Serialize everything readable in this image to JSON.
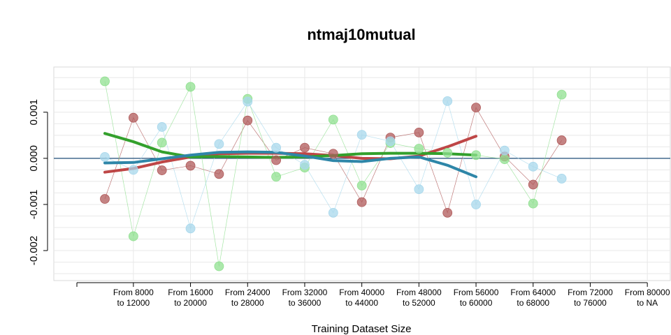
{
  "chart_data": {
    "type": "scatter",
    "title": "ntmaj10mutual",
    "xlabel": "Training Dataset Size",
    "ylabel": "",
    "x_tick_labels": [
      [
        "From 8000",
        "to 12000"
      ],
      [
        "From 16000",
        "to 20000"
      ],
      [
        "From 24000",
        "to 28000"
      ],
      [
        "From 32000",
        "to 36000"
      ],
      [
        "From 40000",
        "to 44000"
      ],
      [
        "From 48000",
        "to 52000"
      ],
      [
        "From 56000",
        "to 60000"
      ],
      [
        "From 64000",
        "to 68000"
      ],
      [
        "From 72000",
        "to 76000"
      ],
      [
        "From 80000",
        "to NA"
      ]
    ],
    "y_ticks": [
      0.001,
      0.0,
      -0.001,
      -0.002
    ],
    "y_tick_labels": [
      "0.001",
      "0.000",
      "-0.001",
      "-0.002"
    ],
    "xlim": [
      -0.5,
      20.5
    ],
    "ylim": [
      -0.00265,
      0.00198
    ],
    "grid": true,
    "reference_line_y": 0.0,
    "series": [
      {
        "color": "#B05A5A",
        "points": [
          [
            0,
            -0.00088
          ],
          [
            1,
            0.00088
          ],
          [
            2,
            -0.00026
          ],
          [
            3,
            -0.00016
          ],
          [
            4,
            -0.00034
          ],
          [
            5,
            0.00082
          ],
          [
            6,
            -4e-05
          ],
          [
            7,
            0.00023
          ],
          [
            8,
            0.0001
          ],
          [
            9,
            -0.00095
          ],
          [
            10,
            0.00045
          ],
          [
            11,
            0.00056
          ],
          [
            12,
            -0.00118
          ],
          [
            13,
            0.0011
          ],
          [
            14,
            4e-05
          ],
          [
            15,
            -0.00057
          ],
          [
            16,
            0.00039
          ]
        ],
        "trend": [
          [
            0,
            -0.0003
          ],
          [
            1,
            -0.00022
          ],
          [
            2,
            -8e-05
          ],
          [
            3,
            3e-05
          ],
          [
            4,
            0.0001
          ],
          [
            5,
            0.00011
          ],
          [
            6,
            0.00011
          ],
          [
            7,
            0.0001
          ],
          [
            8,
            6e-05
          ],
          [
            9,
            0.0
          ],
          [
            10,
            -1e-05
          ],
          [
            11,
            5e-05
          ],
          [
            12,
            0.00025
          ],
          [
            13,
            0.00048
          ]
        ]
      },
      {
        "color": "#90E090",
        "points": [
          [
            0,
            0.00167
          ],
          [
            1,
            -0.00169
          ],
          [
            2,
            0.00034
          ],
          [
            3,
            0.00155
          ],
          [
            4,
            -0.00234
          ],
          [
            5,
            0.00129
          ],
          [
            6,
            -0.0004
          ],
          [
            7,
            -0.0002
          ],
          [
            8,
            0.00084
          ],
          [
            9,
            -0.00059
          ],
          [
            10,
            0.00033
          ],
          [
            11,
            0.00021
          ],
          [
            12,
            0.00012
          ],
          [
            13,
            7e-05
          ],
          [
            14,
            -2e-05
          ],
          [
            15,
            -0.00098
          ],
          [
            16,
            0.00138
          ]
        ],
        "trend": [
          [
            0,
            0.00054
          ],
          [
            1,
            0.00036
          ],
          [
            2,
            0.00014
          ],
          [
            3,
            3e-05
          ],
          [
            4,
            4e-05
          ],
          [
            5,
            3e-05
          ],
          [
            6,
            2e-05
          ],
          [
            7,
            3e-05
          ],
          [
            8,
            6e-05
          ],
          [
            9,
            0.0001
          ],
          [
            10,
            0.00011
          ],
          [
            11,
            0.00011
          ],
          [
            12,
            0.0001
          ],
          [
            13,
            7e-05
          ]
        ]
      },
      {
        "color": "#A8D8EC",
        "points": [
          [
            0,
            3e-05
          ],
          [
            1,
            -0.00025
          ],
          [
            2,
            0.00068
          ],
          [
            3,
            -0.00152
          ],
          [
            4,
            0.00031
          ],
          [
            5,
            0.00123
          ],
          [
            6,
            0.00023
          ],
          [
            7,
            -0.00014
          ],
          [
            8,
            -0.00118
          ],
          [
            9,
            0.00051
          ],
          [
            10,
            0.00037
          ],
          [
            11,
            -0.00067
          ],
          [
            12,
            0.00124
          ],
          [
            13,
            -0.001
          ],
          [
            14,
            0.00017
          ],
          [
            15,
            -0.00018
          ],
          [
            16,
            -0.00044
          ]
        ],
        "trend": [
          [
            0,
            -0.0001
          ],
          [
            1,
            -9e-05
          ],
          [
            2,
            -1e-05
          ],
          [
            3,
            7e-05
          ],
          [
            4,
            0.00013
          ],
          [
            5,
            0.00014
          ],
          [
            6,
            0.00013
          ],
          [
            7,
            5e-05
          ],
          [
            8,
            -5e-05
          ],
          [
            9,
            -7e-05
          ],
          [
            10,
            0.0
          ],
          [
            11,
            3e-05
          ],
          [
            12,
            -0.00015
          ],
          [
            13,
            -0.0004
          ]
        ]
      }
    ],
    "trend_colors": [
      "#BE4646",
      "#33A02C",
      "#2E86A8"
    ]
  }
}
